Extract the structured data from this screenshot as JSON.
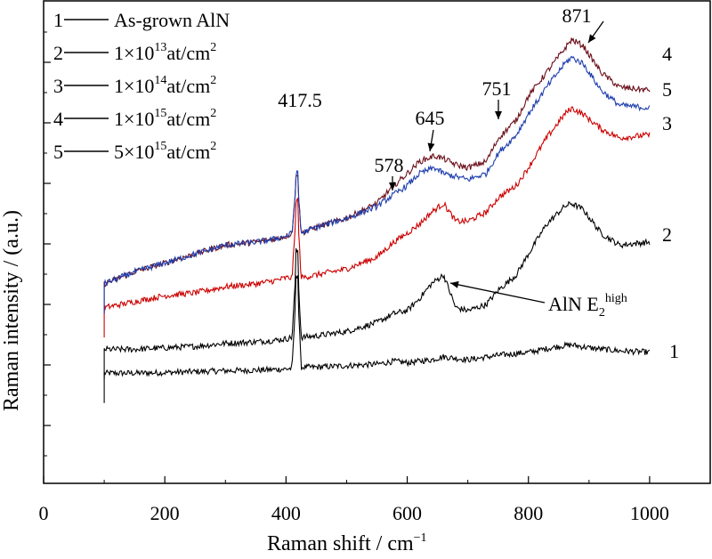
{
  "chart_data": {
    "type": "line",
    "xlabel": "Raman shift / cm",
    "xlabel_sup": "−1",
    "ylabel": "Raman intensity / (a.u.)",
    "xlim": [
      0,
      1100
    ],
    "x_ticks": [
      {
        "value": 0,
        "label": "0"
      },
      {
        "value": 200,
        "label": "200"
      },
      {
        "value": 400,
        "label": "400"
      },
      {
        "value": 600,
        "label": "600"
      },
      {
        "value": 800,
        "label": "800"
      },
      {
        "value": 1000,
        "label": "1000"
      }
    ],
    "y_axis": {
      "ticks_labeled": false,
      "unit": "a.u."
    },
    "legend": {
      "placement": "top-left",
      "entries": [
        {
          "num": "1",
          "text": "As-grown  AlN"
        },
        {
          "num": "2",
          "text": "1×10",
          "sup": "13",
          "after": "at/cm",
          "sup2": "2"
        },
        {
          "num": "3",
          "text": "1×10",
          "sup": "14",
          "after": "at/cm",
          "sup2": "2"
        },
        {
          "num": "4",
          "text": "1×10",
          "sup": "15",
          "after": "at/cm",
          "sup2": "2"
        },
        {
          "num": "5",
          "text": "5×10",
          "sup": "15",
          "after": "at/cm",
          "sup2": "2"
        }
      ]
    },
    "series": [
      {
        "name": "As-grown  AlN",
        "label": "1",
        "color": "#000000",
        "x": [
          100,
          150,
          200,
          250,
          300,
          350,
          380,
          400,
          410,
          418,
          425,
          450,
          500,
          550,
          578,
          600,
          640,
          660,
          700,
          751,
          800,
          850,
          871,
          900,
          950,
          1000
        ],
        "y": [
          0.17,
          0.17,
          0.172,
          0.175,
          0.178,
          0.18,
          0.182,
          0.184,
          0.186,
          0.5,
          0.19,
          0.19,
          0.195,
          0.2,
          0.21,
          0.205,
          0.215,
          0.225,
          0.215,
          0.23,
          0.24,
          0.26,
          0.265,
          0.255,
          0.245,
          0.24
        ]
      },
      {
        "name": "1×10^13at/cm^2",
        "label": "2",
        "color": "#000000",
        "x": [
          100,
          150,
          200,
          250,
          300,
          350,
          380,
          400,
          410,
          418,
          425,
          450,
          500,
          550,
          578,
          600,
          620,
          640,
          660,
          680,
          700,
          730,
          751,
          780,
          800,
          830,
          860,
          871,
          890,
          920,
          950,
          1000
        ],
        "y": [
          0.25,
          0.25,
          0.255,
          0.26,
          0.27,
          0.275,
          0.28,
          0.285,
          0.29,
          0.58,
          0.29,
          0.295,
          0.31,
          0.34,
          0.37,
          0.38,
          0.42,
          0.47,
          0.5,
          0.39,
          0.38,
          0.4,
          0.45,
          0.5,
          0.57,
          0.67,
          0.73,
          0.74,
          0.72,
          0.64,
          0.6,
          0.61
        ]
      },
      {
        "name": "1×10^14at/cm^2",
        "label": "3",
        "color": "#cc0000",
        "x": [
          100,
          150,
          200,
          250,
          300,
          350,
          380,
          400,
          410,
          418,
          425,
          450,
          500,
          550,
          578,
          600,
          620,
          640,
          660,
          680,
          700,
          730,
          751,
          780,
          800,
          830,
          860,
          871,
          890,
          920,
          950,
          1000
        ],
        "y": [
          0.39,
          0.41,
          0.43,
          0.44,
          0.46,
          0.47,
          0.48,
          0.49,
          0.49,
          0.75,
          0.49,
          0.5,
          0.52,
          0.56,
          0.61,
          0.64,
          0.67,
          0.71,
          0.74,
          0.68,
          0.68,
          0.71,
          0.76,
          0.8,
          0.86,
          0.96,
          1.04,
          1.06,
          1.04,
          0.99,
          0.96,
          0.97
        ]
      },
      {
        "name": "1×10^15at/cm^2",
        "label": "4",
        "color": "#6b0f1a",
        "x": [
          100,
          150,
          200,
          250,
          300,
          350,
          380,
          400,
          410,
          418,
          425,
          450,
          500,
          550,
          578,
          600,
          620,
          645,
          660,
          680,
          700,
          730,
          751,
          780,
          800,
          830,
          860,
          871,
          890,
          920,
          950,
          1000
        ],
        "y": [
          0.47,
          0.51,
          0.54,
          0.57,
          0.6,
          0.61,
          0.62,
          0.63,
          0.64,
          0.84,
          0.64,
          0.66,
          0.69,
          0.74,
          0.8,
          0.84,
          0.88,
          0.9,
          0.89,
          0.87,
          0.86,
          0.88,
          0.96,
          1.02,
          1.1,
          1.18,
          1.26,
          1.29,
          1.27,
          1.18,
          1.13,
          1.12
        ]
      },
      {
        "name": "5×10^15at/cm^2",
        "label": "5",
        "color": "#1f3fae",
        "x": [
          100,
          150,
          200,
          250,
          300,
          350,
          380,
          400,
          410,
          418,
          425,
          450,
          500,
          550,
          578,
          600,
          620,
          645,
          660,
          680,
          700,
          730,
          751,
          780,
          800,
          830,
          860,
          871,
          890,
          920,
          950,
          1000
        ],
        "y": [
          0.47,
          0.51,
          0.54,
          0.57,
          0.6,
          0.61,
          0.62,
          0.63,
          0.64,
          0.84,
          0.64,
          0.66,
          0.69,
          0.73,
          0.77,
          0.8,
          0.84,
          0.86,
          0.84,
          0.83,
          0.82,
          0.84,
          0.91,
          0.97,
          1.04,
          1.13,
          1.21,
          1.23,
          1.21,
          1.12,
          1.07,
          1.06
        ]
      }
    ],
    "annotations": [
      {
        "text": "417.5",
        "x": 418,
        "kind": "label"
      },
      {
        "text": "578",
        "x": 578,
        "kind": "arrow"
      },
      {
        "text": "645",
        "x": 645,
        "kind": "arrow"
      },
      {
        "text": "751",
        "x": 751,
        "kind": "arrow"
      },
      {
        "text": "871",
        "x": 871,
        "kind": "arrow"
      },
      {
        "text": "AlN E",
        "sub": "2",
        "sup": "high",
        "x": 660,
        "kind": "callout"
      }
    ],
    "curve_labels": [
      "4",
      "5",
      "3",
      "2",
      "1"
    ]
  }
}
